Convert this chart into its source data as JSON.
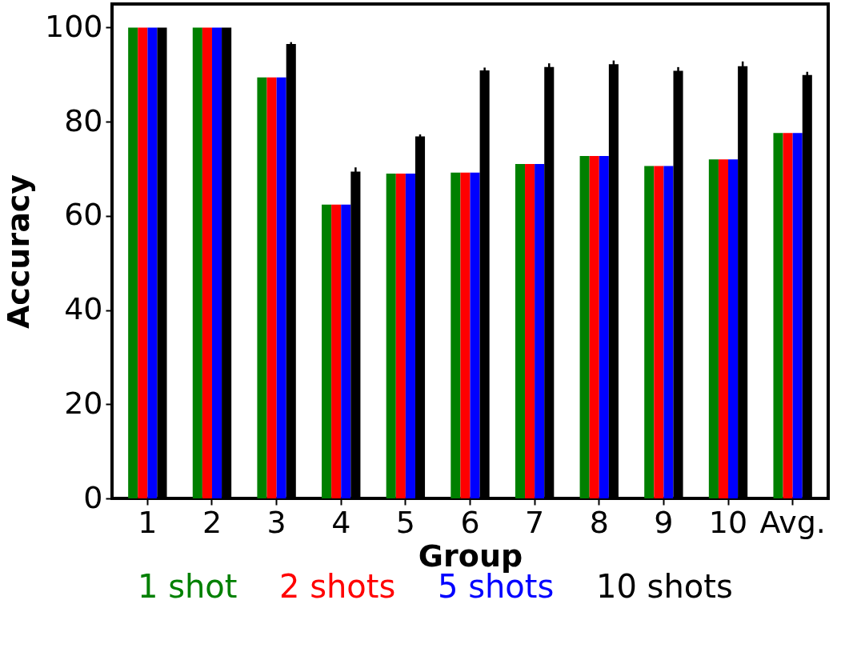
{
  "chart_data": {
    "type": "bar",
    "xlabel": "Group",
    "ylabel": "Accuracy",
    "categories": [
      "1",
      "2",
      "3",
      "4",
      "5",
      "6",
      "7",
      "8",
      "9",
      "10",
      "Avg."
    ],
    "series": [
      {
        "name": "1 shot",
        "color": "#008000",
        "values": [
          100,
          100,
          89.4,
          62.4,
          69.0,
          69.2,
          71.0,
          72.7,
          70.6,
          72.0,
          77.6
        ]
      },
      {
        "name": "2 shots",
        "color": "#ff0000",
        "values": [
          100,
          100,
          89.4,
          62.4,
          69.0,
          69.2,
          71.0,
          72.7,
          70.6,
          72.0,
          77.6
        ]
      },
      {
        "name": "5 shots",
        "color": "#0000ff",
        "values": [
          100,
          100,
          89.4,
          62.4,
          69.0,
          69.2,
          71.0,
          72.7,
          70.6,
          72.0,
          77.6
        ]
      },
      {
        "name": "10 shots",
        "color": "#000000",
        "values": [
          100,
          100,
          96.5,
          69.4,
          76.9,
          90.9,
          91.6,
          92.2,
          90.8,
          91.8,
          89.9
        ],
        "errors": [
          null,
          null,
          0.4,
          0.9,
          0.4,
          0.6,
          0.8,
          0.8,
          0.8,
          1.0,
          0.7
        ]
      }
    ],
    "ylim": [
      0,
      105
    ],
    "yticks": [
      0,
      20,
      40,
      60,
      80,
      100
    ],
    "grid": false,
    "legend": "bottom"
  }
}
